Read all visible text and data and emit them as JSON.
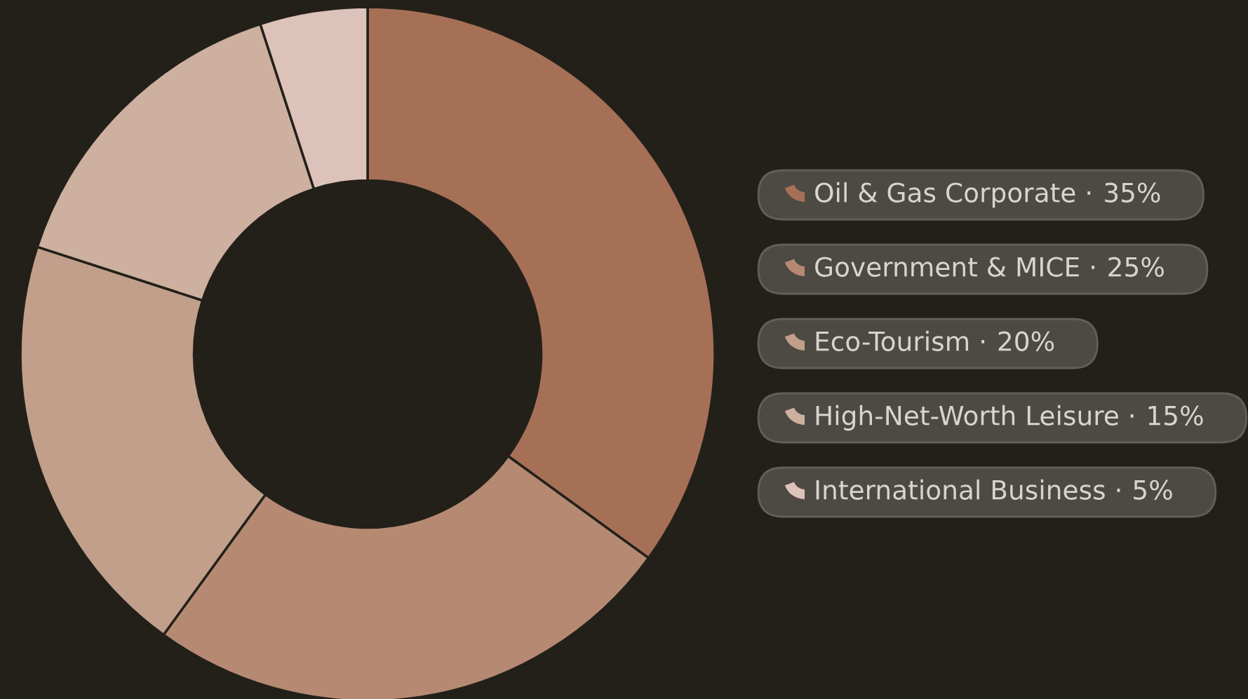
{
  "chart_data": {
    "type": "donut",
    "categories": [
      "Oil & Gas Corporate ·",
      "Government & MICE ·",
      "Eco-Tourism ·",
      "High-Net-Worth Leisure ·",
      "International Business ·"
    ],
    "values": [
      35,
      25,
      20,
      15,
      5
    ],
    "value_labels": [
      "35%",
      "25%",
      "20%",
      "15%",
      "5%"
    ],
    "colors": [
      "#a67057",
      "#b68a72",
      "#c19f8a",
      "#cdb09f",
      "#dcc2b8"
    ],
    "legend": "right"
  }
}
